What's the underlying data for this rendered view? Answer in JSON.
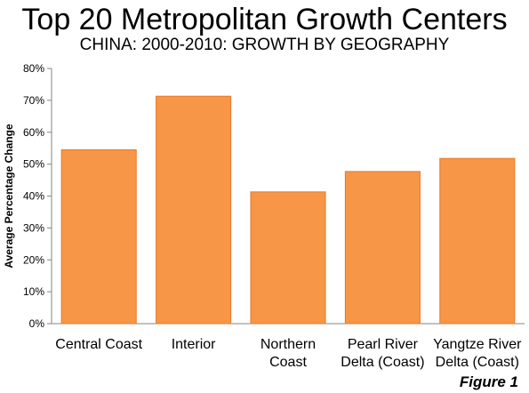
{
  "title": "Top 20 Metropolitan Growth Centers",
  "subtitle": "CHINA: 2000-2010: GROWTH BY GEOGRAPHY",
  "figure_label": "Figure 1",
  "chart_data": {
    "type": "bar",
    "title": "Top 20 Metropolitan Growth Centers",
    "subtitle": "CHINA: 2000-2010: GROWTH BY GEOGRAPHY",
    "xlabel": "",
    "ylabel": "Average Percentage Change",
    "categories": [
      [
        "Central Coast"
      ],
      [
        "Interior"
      ],
      [
        "Northern",
        "Coast"
      ],
      [
        "Pearl River",
        "Delta (Coast)"
      ],
      [
        "Yangtze River",
        "Delta (Coast)"
      ]
    ],
    "values": [
      54.5,
      71.3,
      41.3,
      47.7,
      51.8
    ],
    "ylim": [
      0,
      80
    ],
    "yticks": [
      0,
      10,
      20,
      30,
      40,
      50,
      60,
      70,
      80
    ],
    "ytick_labels": [
      "0%",
      "10%",
      "20%",
      "30%",
      "40%",
      "50%",
      "60%",
      "70%",
      "80%"
    ],
    "bar_color": "#F79646",
    "grid": false,
    "legend": "none"
  }
}
